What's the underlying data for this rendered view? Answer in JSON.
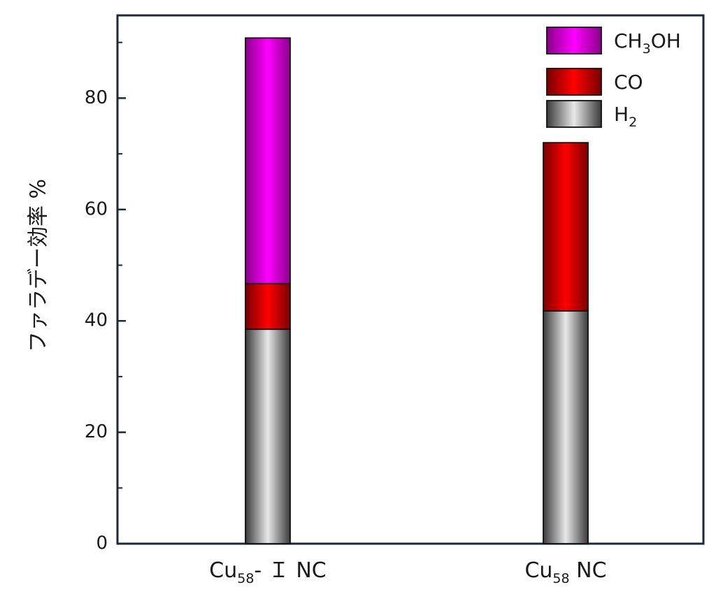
{
  "chart_data": {
    "type": "bar",
    "stacked": true,
    "categories": [
      {
        "main": "Cu",
        "sub": "58",
        "rest": "- Ｉ NC"
      },
      {
        "main": "Cu",
        "sub": "58",
        "rest": " NC"
      }
    ],
    "series": [
      {
        "key": "h2",
        "name_main": "H",
        "name_sub": "2",
        "name_rest": "",
        "color": "#a0a0a0",
        "values": [
          38.5,
          41.8
        ]
      },
      {
        "key": "co",
        "name_main": "CO",
        "name_sub": "",
        "name_rest": "",
        "color": "#ff0000",
        "values": [
          8.2,
          30.2
        ]
      },
      {
        "key": "ch3oh",
        "name_main": "CH",
        "name_sub": "3",
        "name_rest": "OH",
        "color": "#ff00ff",
        "values": [
          44.1,
          0
        ]
      }
    ],
    "legend_order": [
      "ch3oh",
      "co",
      "h2"
    ],
    "ylabel": "ファラデー効率 %",
    "ylim": [
      0,
      95
    ],
    "yticks": [
      0,
      20,
      40,
      60,
      80
    ],
    "yticks_minor": [
      10,
      30,
      50,
      70,
      90
    ],
    "grid": false,
    "legend_position": "top-right"
  }
}
